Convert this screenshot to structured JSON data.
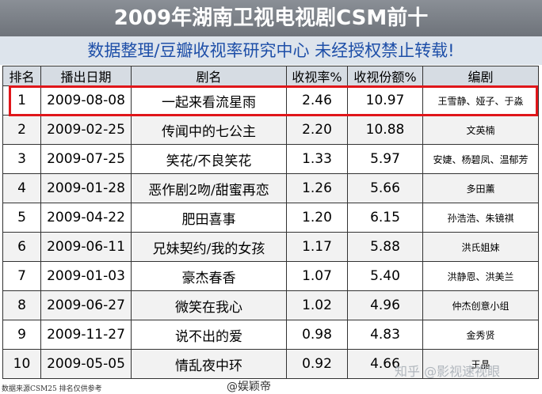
{
  "title": "2009年湖南卫视电视剧CSM前十",
  "subtitle": "数据整理/豆瓣收视率研究中心  未经授权禁止转载!",
  "columns": [
    "排名",
    "播出日期",
    "剧名",
    "收视率%",
    "收视份额%",
    "编剧"
  ],
  "rows": [
    {
      "rank": "1",
      "date": "2009-08-08",
      "drama": "一起来看流星雨",
      "rating": "2.46",
      "share": "10.97",
      "writers": "王雪静、娅子、于淼"
    },
    {
      "rank": "2",
      "date": "2009-02-25",
      "drama": "传闻中的七公主",
      "rating": "2.20",
      "share": "10.88",
      "writers": "文英楠"
    },
    {
      "rank": "3",
      "date": "2009-07-25",
      "drama": "笑花/不良笑花",
      "rating": "1.33",
      "share": "5.97",
      "writers": "安婕、杨碧凤、温郁芳"
    },
    {
      "rank": "4",
      "date": "2009-01-28",
      "drama": "恶作剧2吻/甜蜜再恋",
      "rating": "1.26",
      "share": "5.66",
      "writers": "多田薰"
    },
    {
      "rank": "5",
      "date": "2009-04-22",
      "drama": "肥田喜事",
      "rating": "1.20",
      "share": "6.15",
      "writers": "孙浩浩、朱镜祺"
    },
    {
      "rank": "6",
      "date": "2009-06-11",
      "drama": "兄妹契约/我的女孩",
      "rating": "1.17",
      "share": "5.88",
      "writers": "洪氏姐妹"
    },
    {
      "rank": "7",
      "date": "2009-01-03",
      "drama": "豪杰春香",
      "rating": "1.07",
      "share": "5.40",
      "writers": "洪静恩、洪美兰"
    },
    {
      "rank": "8",
      "date": "2009-06-27",
      "drama": "微笑在我心",
      "rating": "1.02",
      "share": "4.96",
      "writers": "仲杰创意小组"
    },
    {
      "rank": "9",
      "date": "2009-11-27",
      "drama": "说不出的爱",
      "rating": "0.98",
      "share": "4.83",
      "writers": "金秀贤"
    },
    {
      "rank": "10",
      "date": "2009-05-05",
      "drama": "情乱夜中环",
      "rating": "0.92",
      "share": "4.66",
      "writers": "王晶"
    }
  ],
  "footer_note": "数据来源CSM25 排名仅供参考",
  "watermark_weibo": "@娱颖帝",
  "watermark_zhihu": "知乎 @影视速视眼",
  "colors": {
    "title_bg": "#7b8087",
    "subtitle_bg": "#dde4ec",
    "subtitle_text": "#1e4fa8",
    "highlight": "#e0161a"
  }
}
